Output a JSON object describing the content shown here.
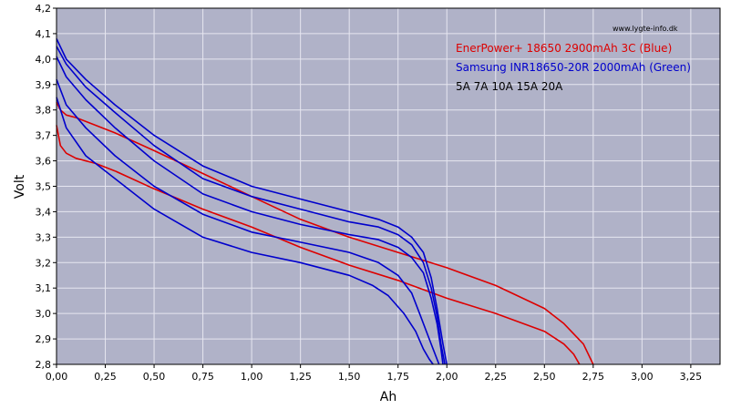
{
  "chart_data": {
    "type": "line",
    "title": "",
    "xlabel": "Ah",
    "ylabel": "Volt",
    "xlim": [
      0,
      3.4
    ],
    "ylim": [
      2.8,
      4.2
    ],
    "grid": true,
    "background_color": "#b0b2c8",
    "grid_color": "#e6e6f0",
    "x_tick_values": [
      0,
      0.25,
      0.5,
      0.75,
      1.0,
      1.25,
      1.5,
      1.75,
      2.0,
      2.25,
      2.5,
      2.75,
      3.0,
      3.25
    ],
    "x_tick_labels": [
      "0,00",
      "0,25",
      "0,50",
      "0,75",
      "1,00",
      "1,25",
      "1,50",
      "1,75",
      "2,00",
      "2,25",
      "2,50",
      "2,75",
      "3,00",
      "3,25"
    ],
    "y_tick_values": [
      2.8,
      2.9,
      3.0,
      3.1,
      3.2,
      3.3,
      3.4,
      3.5,
      3.6,
      3.7,
      3.8,
      3.9,
      4.0,
      4.1,
      4.2
    ],
    "y_tick_labels": [
      "2,8",
      "2,9",
      "3,0",
      "3,1",
      "3,2",
      "3,3",
      "3,4",
      "3,5",
      "3,6",
      "3,7",
      "3,8",
      "3,9",
      "4,0",
      "4,1",
      "4,2"
    ],
    "watermark": "www.lygte-info.dk",
    "legend": [
      {
        "text": "EnerPower+ 18650 2900mAh 3C (Blue)",
        "color": "#dd0000"
      },
      {
        "text": "Samsung INR18650-20R 2000mAh (Green)",
        "color": "#0000cc"
      },
      {
        "text": "5A 7A 10A 15A 20A",
        "color": "#000000"
      }
    ],
    "series": [
      {
        "name": "EnerPower+ 5A",
        "color": "#dd0000",
        "x": [
          0,
          0.02,
          0.05,
          0.1,
          0.2,
          0.3,
          0.5,
          0.75,
          1.0,
          1.25,
          1.5,
          1.75,
          2.0,
          2.25,
          2.5,
          2.6,
          2.7,
          2.75
        ],
        "y": [
          3.83,
          3.8,
          3.78,
          3.77,
          3.74,
          3.71,
          3.64,
          3.55,
          3.46,
          3.37,
          3.3,
          3.24,
          3.18,
          3.11,
          3.02,
          2.96,
          2.88,
          2.8
        ]
      },
      {
        "name": "EnerPower+ 10A",
        "color": "#dd0000",
        "x": [
          0,
          0.02,
          0.05,
          0.1,
          0.2,
          0.3,
          0.5,
          0.75,
          1.0,
          1.25,
          1.5,
          1.75,
          2.0,
          2.25,
          2.5,
          2.6,
          2.65,
          2.68
        ],
        "y": [
          3.74,
          3.66,
          3.63,
          3.61,
          3.59,
          3.56,
          3.49,
          3.41,
          3.34,
          3.26,
          3.19,
          3.13,
          3.06,
          3.0,
          2.93,
          2.88,
          2.84,
          2.8
        ]
      },
      {
        "name": "Samsung 20R 5A",
        "color": "#0000cc",
        "x": [
          0,
          0.05,
          0.15,
          0.3,
          0.5,
          0.75,
          1.0,
          1.25,
          1.5,
          1.65,
          1.75,
          1.82,
          1.88,
          1.92,
          1.95,
          1.98,
          2.0
        ],
        "y": [
          4.08,
          4.0,
          3.92,
          3.82,
          3.7,
          3.58,
          3.5,
          3.45,
          3.4,
          3.37,
          3.34,
          3.3,
          3.24,
          3.14,
          3.02,
          2.88,
          2.8
        ]
      },
      {
        "name": "Samsung 20R 7A",
        "color": "#0000cc",
        "x": [
          0,
          0.05,
          0.15,
          0.3,
          0.5,
          0.75,
          1.0,
          1.25,
          1.5,
          1.65,
          1.75,
          1.82,
          1.88,
          1.92,
          1.95,
          1.97,
          1.99
        ],
        "y": [
          4.05,
          3.98,
          3.89,
          3.79,
          3.66,
          3.53,
          3.46,
          3.41,
          3.36,
          3.34,
          3.31,
          3.27,
          3.2,
          3.1,
          2.99,
          2.88,
          2.8
        ]
      },
      {
        "name": "Samsung 20R 10A",
        "color": "#0000cc",
        "x": [
          0,
          0.05,
          0.15,
          0.3,
          0.5,
          0.75,
          1.0,
          1.25,
          1.5,
          1.65,
          1.75,
          1.82,
          1.88,
          1.92,
          1.95,
          1.97,
          1.98
        ],
        "y": [
          4.01,
          3.93,
          3.84,
          3.73,
          3.6,
          3.47,
          3.4,
          3.35,
          3.31,
          3.29,
          3.26,
          3.22,
          3.16,
          3.06,
          2.96,
          2.86,
          2.8
        ]
      },
      {
        "name": "Samsung 20R 15A",
        "color": "#0000cc",
        "x": [
          0,
          0.05,
          0.15,
          0.3,
          0.5,
          0.75,
          1.0,
          1.25,
          1.5,
          1.65,
          1.75,
          1.82,
          1.86,
          1.9,
          1.93,
          1.95,
          1.96
        ],
        "y": [
          3.92,
          3.82,
          3.73,
          3.62,
          3.5,
          3.39,
          3.32,
          3.28,
          3.24,
          3.2,
          3.15,
          3.08,
          3.0,
          2.92,
          2.86,
          2.82,
          2.8
        ]
      },
      {
        "name": "Samsung 20R 20A",
        "color": "#0000cc",
        "x": [
          0,
          0.05,
          0.15,
          0.3,
          0.5,
          0.75,
          1.0,
          1.25,
          1.5,
          1.62,
          1.7,
          1.78,
          1.84,
          1.88,
          1.91,
          1.93
        ],
        "y": [
          3.85,
          3.73,
          3.62,
          3.53,
          3.41,
          3.3,
          3.24,
          3.2,
          3.15,
          3.11,
          3.07,
          3.0,
          2.93,
          2.86,
          2.82,
          2.8
        ]
      }
    ]
  }
}
